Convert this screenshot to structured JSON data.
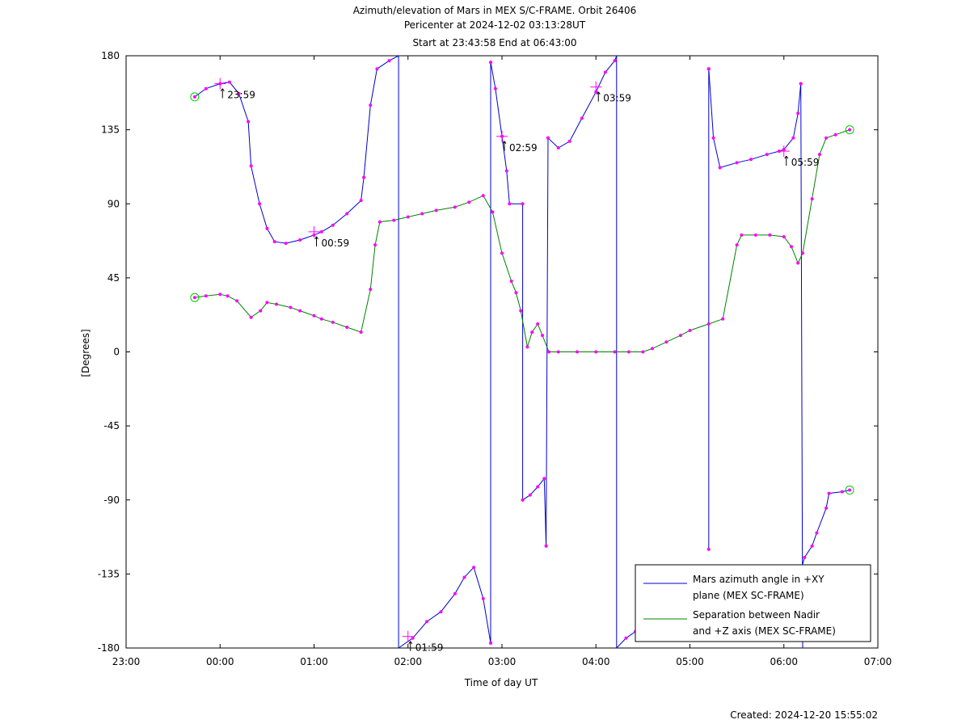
{
  "chart_data": {
    "type": "line",
    "title_lines": [
      "Azimuth/elevation of Mars in MEX S/C-FRAME.  Orbit 26406",
      "Pericenter at 2024-12-02 03:13:28UT",
      "Start at 23:43:58 End at 06:43:00"
    ],
    "xlabel": "Time of day UT",
    "ylabel": "[Degrees]",
    "x_unit": "hours since 23:00",
    "xlim": [
      0,
      8
    ],
    "ylim": [
      -180,
      180
    ],
    "x_ticks": [
      {
        "v": 0,
        "label": "23:00"
      },
      {
        "v": 1,
        "label": "00:00"
      },
      {
        "v": 2,
        "label": "01:00"
      },
      {
        "v": 3,
        "label": "02:00"
      },
      {
        "v": 4,
        "label": "03:00"
      },
      {
        "v": 5,
        "label": "04:00"
      },
      {
        "v": 6,
        "label": "05:00"
      },
      {
        "v": 7,
        "label": "06:00"
      },
      {
        "v": 8,
        "label": "07:00"
      }
    ],
    "y_ticks": [
      {
        "v": 180,
        "label": "180"
      },
      {
        "v": 135,
        "label": "135"
      },
      {
        "v": 90,
        "label": "90"
      },
      {
        "v": 45,
        "label": "45"
      },
      {
        "v": 0,
        "label": "0"
      },
      {
        "v": -45,
        "label": "-45"
      },
      {
        "v": -90,
        "label": "-90"
      },
      {
        "v": -135,
        "label": "-135"
      },
      {
        "v": -180,
        "label": "-180"
      }
    ],
    "legend_position": "bottom-right",
    "series": [
      {
        "name_lines": [
          "Mars azimuth angle in +XY",
          "plane (MEX SC-FRAME)"
        ],
        "color": "#0000cc",
        "segments": [
          [
            [
              0.73,
              155
            ],
            [
              0.85,
              160
            ],
            [
              1.0,
              163
            ],
            [
              1.1,
              164
            ],
            [
              1.2,
              157
            ],
            [
              1.3,
              140
            ],
            [
              1.33,
              113
            ],
            [
              1.42,
              90
            ],
            [
              1.5,
              75
            ],
            [
              1.58,
              67
            ],
            [
              1.7,
              66
            ],
            [
              1.85,
              68
            ],
            [
              2.0,
              71
            ],
            [
              2.08,
              73
            ],
            [
              2.2,
              77
            ],
            [
              2.35,
              84
            ],
            [
              2.5,
              92
            ],
            [
              2.53,
              106
            ],
            [
              2.6,
              150
            ],
            [
              2.67,
              172
            ],
            [
              2.8,
              177
            ],
            [
              2.9,
              180
            ]
          ],
          [
            [
              2.9,
              180
            ],
            [
              2.9,
              -180
            ]
          ],
          [
            [
              2.9,
              -180
            ],
            [
              3.05,
              -174
            ],
            [
              3.2,
              -164
            ],
            [
              3.35,
              -158
            ],
            [
              3.5,
              -147
            ],
            [
              3.6,
              -137
            ],
            [
              3.7,
              -131
            ],
            [
              3.8,
              -150
            ],
            [
              3.88,
              -177
            ]
          ],
          [
            [
              3.88,
              -177
            ],
            [
              3.88,
              176
            ]
          ],
          [
            [
              3.88,
              176
            ],
            [
              3.93,
              160
            ],
            [
              4.0,
              131
            ],
            [
              4.05,
              110
            ],
            [
              4.08,
              90
            ],
            [
              4.22,
              90
            ],
            [
              4.22,
              -90
            ]
          ],
          [
            [
              4.22,
              -90
            ],
            [
              4.3,
              -87
            ],
            [
              4.38,
              -82
            ],
            [
              4.45,
              -77
            ],
            [
              4.47,
              -118
            ]
          ],
          [
            [
              4.47,
              -118
            ],
            [
              4.49,
              130
            ]
          ],
          [
            [
              4.49,
              130
            ],
            [
              4.6,
              124
            ],
            [
              4.72,
              128
            ],
            [
              4.85,
              142
            ],
            [
              5.0,
              158
            ],
            [
              5.1,
              170
            ],
            [
              5.2,
              177
            ],
            [
              5.22,
              180
            ]
          ],
          [
            [
              5.22,
              180
            ],
            [
              5.22,
              -180
            ]
          ],
          [
            [
              5.22,
              -180
            ],
            [
              5.32,
              -174
            ],
            [
              5.42,
              -170
            ]
          ],
          [
            [
              6.2,
              -120
            ],
            [
              6.2,
              172
            ]
          ],
          [
            [
              6.2,
              172
            ],
            [
              6.25,
              130
            ],
            [
              6.32,
              112
            ],
            [
              6.5,
              115
            ],
            [
              6.65,
              117
            ],
            [
              6.82,
              120
            ],
            [
              6.95,
              122
            ],
            [
              7.0,
              123
            ],
            [
              7.1,
              130
            ],
            [
              7.15,
              145
            ],
            [
              7.18,
              163
            ]
          ],
          [
            [
              7.18,
              163
            ],
            [
              7.2,
              -180
            ]
          ],
          [
            [
              7.18,
              -133
            ],
            [
              7.22,
              -125
            ],
            [
              7.3,
              -118
            ],
            [
              7.35,
              -110
            ],
            [
              7.45,
              -95
            ],
            [
              7.48,
              -86
            ],
            [
              7.62,
              -85
            ],
            [
              7.7,
              -84
            ]
          ]
        ]
      },
      {
        "name_lines": [
          "Separation between Nadir",
          "and +Z axis (MEX SC-FRAME)"
        ],
        "color": "#008000",
        "segments": [
          [
            [
              0.73,
              33
            ],
            [
              0.85,
              34
            ],
            [
              1.0,
              35
            ],
            [
              1.08,
              34
            ],
            [
              1.18,
              31
            ],
            [
              1.33,
              21
            ],
            [
              1.43,
              25
            ],
            [
              1.5,
              30
            ],
            [
              1.6,
              29
            ],
            [
              1.75,
              27
            ],
            [
              1.85,
              25
            ],
            [
              2.0,
              22
            ],
            [
              2.08,
              20
            ],
            [
              2.2,
              18
            ],
            [
              2.35,
              15
            ],
            [
              2.5,
              12
            ],
            [
              2.6,
              38
            ],
            [
              2.65,
              65
            ],
            [
              2.7,
              79
            ],
            [
              2.85,
              80
            ],
            [
              3.0,
              82
            ],
            [
              3.15,
              84
            ],
            [
              3.3,
              86
            ],
            [
              3.5,
              88
            ],
            [
              3.65,
              91
            ],
            [
              3.8,
              95
            ],
            [
              3.9,
              85
            ],
            [
              4.0,
              60
            ],
            [
              4.1,
              43
            ],
            [
              4.15,
              36
            ],
            [
              4.2,
              25
            ],
            [
              4.27,
              3
            ],
            [
              4.32,
              12
            ],
            [
              4.38,
              17
            ],
            [
              4.43,
              10
            ],
            [
              4.5,
              0
            ],
            [
              4.6,
              0
            ],
            [
              4.8,
              0
            ],
            [
              5.0,
              0
            ],
            [
              5.2,
              0
            ],
            [
              5.35,
              0
            ],
            [
              5.5,
              0
            ],
            [
              5.6,
              2
            ],
            [
              5.75,
              6
            ],
            [
              5.9,
              10
            ],
            [
              6.0,
              13
            ],
            [
              6.2,
              17
            ],
            [
              6.35,
              20
            ],
            [
              6.5,
              65
            ],
            [
              6.55,
              71
            ],
            [
              6.7,
              71
            ],
            [
              6.85,
              71
            ],
            [
              7.0,
              70
            ],
            [
              7.08,
              64
            ],
            [
              7.15,
              54
            ],
            [
              7.2,
              60
            ],
            [
              7.3,
              93
            ],
            [
              7.38,
              120
            ],
            [
              7.45,
              130
            ],
            [
              7.55,
              132
            ],
            [
              7.7,
              135
            ]
          ]
        ]
      }
    ],
    "annotations": [
      {
        "text": "23:59",
        "x": 1.0,
        "y": 163
      },
      {
        "text": "00:59",
        "x": 2.0,
        "y": 73
      },
      {
        "text": "01:59",
        "x": 3.0,
        "y": -173
      },
      {
        "text": "02:59",
        "x": 4.0,
        "y": 131
      },
      {
        "text": "03:59",
        "x": 5.0,
        "y": 161
      },
      {
        "text": "05:59",
        "x": 7.0,
        "y": 122
      }
    ]
  },
  "footer": {
    "created": "Created: 2024-12-20 15:55:02"
  }
}
